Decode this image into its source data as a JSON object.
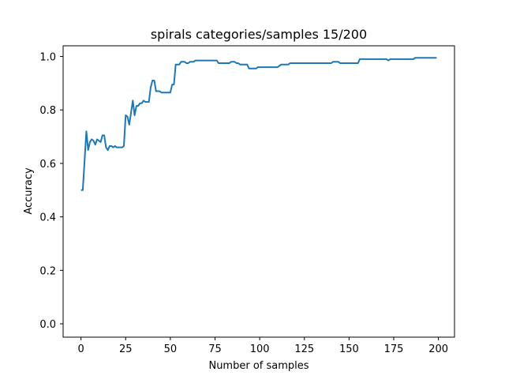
{
  "chart_data": {
    "type": "line",
    "title": "spirals categories/samples 15/200",
    "xlabel": "Number of samples",
    "ylabel": "Accuracy",
    "xlim": [
      -10,
      209
    ],
    "ylim": [
      -0.05,
      1.04
    ],
    "xticks": [
      0,
      25,
      50,
      75,
      100,
      125,
      150,
      175,
      200
    ],
    "yticks": [
      0.0,
      0.2,
      0.4,
      0.6,
      0.8,
      1.0
    ],
    "grid": false,
    "legend": "none",
    "series": [
      {
        "color": "#1f77b4",
        "x": [
          0,
          1,
          2,
          3,
          4,
          5,
          6,
          7,
          8,
          9,
          10,
          11,
          12,
          13,
          14,
          15,
          16,
          17,
          18,
          19,
          20,
          21,
          22,
          23,
          24,
          25,
          26,
          27,
          28,
          29,
          30,
          31,
          32,
          33,
          34,
          35,
          36,
          37,
          38,
          39,
          40,
          41,
          42,
          43,
          44,
          45,
          46,
          47,
          48,
          49,
          50,
          51,
          52,
          53,
          54,
          55,
          56,
          57,
          58,
          59,
          60,
          61,
          62,
          63,
          64,
          65,
          66,
          70,
          75,
          76,
          77,
          80,
          83,
          84,
          85,
          86,
          87,
          88,
          89,
          90,
          91,
          92,
          93,
          94,
          95,
          96,
          97,
          98,
          99,
          100,
          105,
          110,
          111,
          112,
          115,
          116,
          117,
          120,
          125,
          130,
          135,
          140,
          141,
          142,
          143,
          144,
          145,
          150,
          155,
          156,
          160,
          165,
          170,
          171,
          172,
          173,
          175,
          180,
          185,
          186,
          187,
          190,
          195,
          199
        ],
        "y": [
          0.5,
          0.5,
          0.61,
          0.72,
          0.65,
          0.68,
          0.69,
          0.685,
          0.67,
          0.69,
          0.685,
          0.68,
          0.705,
          0.705,
          0.66,
          0.65,
          0.665,
          0.665,
          0.66,
          0.665,
          0.66,
          0.66,
          0.66,
          0.66,
          0.665,
          0.78,
          0.775,
          0.745,
          0.79,
          0.835,
          0.78,
          0.815,
          0.815,
          0.825,
          0.825,
          0.835,
          0.83,
          0.83,
          0.83,
          0.885,
          0.91,
          0.91,
          0.87,
          0.87,
          0.87,
          0.865,
          0.865,
          0.865,
          0.865,
          0.865,
          0.865,
          0.895,
          0.895,
          0.97,
          0.97,
          0.97,
          0.98,
          0.98,
          0.98,
          0.975,
          0.975,
          0.98,
          0.98,
          0.98,
          0.985,
          0.985,
          0.985,
          0.985,
          0.985,
          0.985,
          0.975,
          0.975,
          0.975,
          0.98,
          0.98,
          0.98,
          0.975,
          0.975,
          0.97,
          0.97,
          0.97,
          0.97,
          0.97,
          0.955,
          0.955,
          0.955,
          0.955,
          0.955,
          0.96,
          0.96,
          0.96,
          0.96,
          0.965,
          0.97,
          0.97,
          0.97,
          0.975,
          0.975,
          0.975,
          0.975,
          0.975,
          0.975,
          0.98,
          0.98,
          0.98,
          0.98,
          0.975,
          0.975,
          0.975,
          0.99,
          0.99,
          0.99,
          0.99,
          0.99,
          0.985,
          0.99,
          0.99,
          0.99,
          0.99,
          0.99,
          0.995,
          0.995,
          0.995,
          0.995
        ]
      }
    ]
  }
}
